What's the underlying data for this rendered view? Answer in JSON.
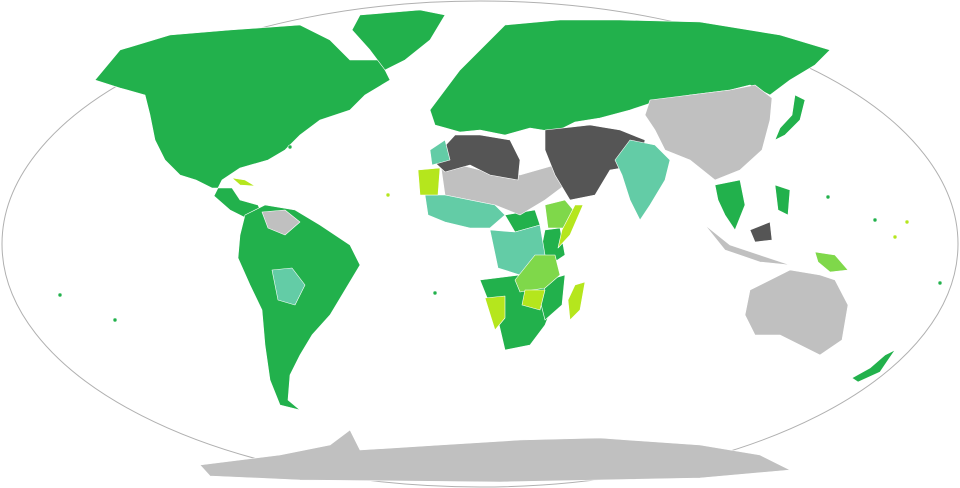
{
  "map": {
    "projection": "robinson-world",
    "colors": {
      "category_1": "#22b14c",
      "category_2": "#63cca6",
      "category_3": "#7fd84a",
      "category_4": "#b5e61d",
      "category_5": "#555555",
      "no_data": "#c0c0c0",
      "outline": "#b0b0b0",
      "ocean": "#ffffff"
    }
  }
}
